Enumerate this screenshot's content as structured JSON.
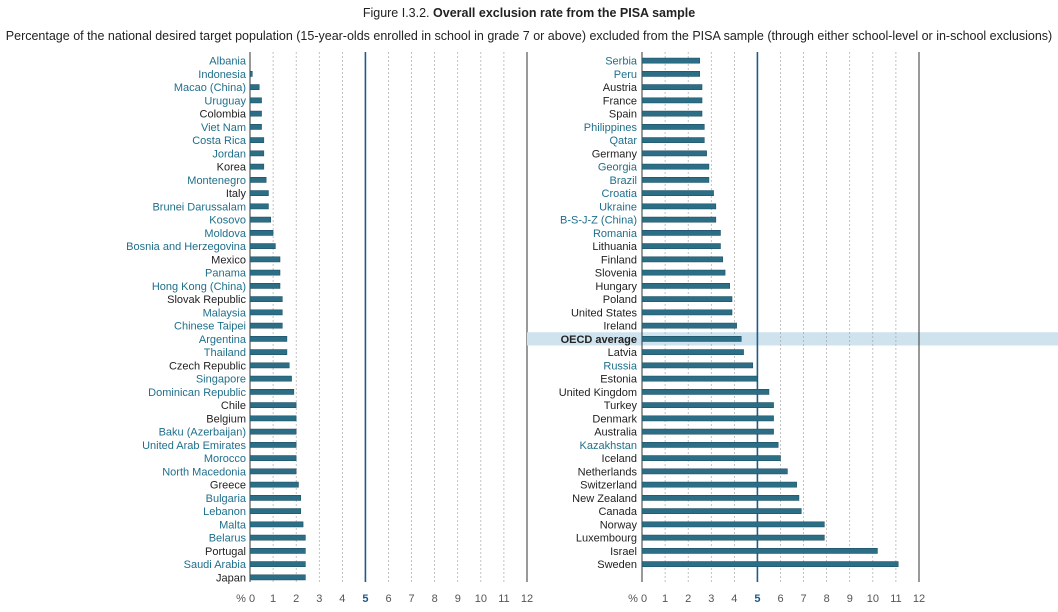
{
  "figure_number": "Figure I.3.2.",
  "chart_data": {
    "type": "bar",
    "orientation": "horizontal",
    "title": "Overall exclusion rate from the PISA sample",
    "subtitle": "Percentage of the national desired target population (15-year-olds enrolled in school in grade 7 or above) excluded from the PISA sample (through either school-level or in-school exclusions)",
    "axis_unit_label": "%",
    "xlim": [
      0,
      12
    ],
    "ticks": [
      0,
      1,
      2,
      3,
      4,
      5,
      6,
      7,
      8,
      9,
      10,
      11,
      12
    ],
    "reference_line": 5,
    "colors": {
      "bar": "#2b6e85",
      "partner_label": "#1f6f8b",
      "oecd_label": "#222222",
      "highlight": "#cfe3ee",
      "refline": "#1f5a8a"
    },
    "panels": [
      {
        "series": [
          {
            "name": "Albania",
            "value": 0.0,
            "partner": true
          },
          {
            "name": "Indonesia",
            "value": 0.1,
            "partner": true
          },
          {
            "name": "Macao (China)",
            "value": 0.4,
            "partner": true
          },
          {
            "name": "Uruguay",
            "value": 0.5,
            "partner": true
          },
          {
            "name": "Colombia",
            "value": 0.5,
            "partner": false
          },
          {
            "name": "Viet Nam",
            "value": 0.5,
            "partner": true
          },
          {
            "name": "Costa Rica",
            "value": 0.6,
            "partner": true
          },
          {
            "name": "Jordan",
            "value": 0.6,
            "partner": true
          },
          {
            "name": "Korea",
            "value": 0.6,
            "partner": false
          },
          {
            "name": "Montenegro",
            "value": 0.7,
            "partner": true
          },
          {
            "name": "Italy",
            "value": 0.8,
            "partner": false
          },
          {
            "name": "Brunei Darussalam",
            "value": 0.8,
            "partner": true
          },
          {
            "name": "Kosovo",
            "value": 0.9,
            "partner": true
          },
          {
            "name": "Moldova",
            "value": 1.0,
            "partner": true
          },
          {
            "name": "Bosnia and Herzegovina",
            "value": 1.1,
            "partner": true
          },
          {
            "name": "Mexico",
            "value": 1.3,
            "partner": false
          },
          {
            "name": "Panama",
            "value": 1.3,
            "partner": true
          },
          {
            "name": "Hong Kong (China)",
            "value": 1.3,
            "partner": true
          },
          {
            "name": "Slovak Republic",
            "value": 1.4,
            "partner": false
          },
          {
            "name": "Malaysia",
            "value": 1.4,
            "partner": true
          },
          {
            "name": "Chinese Taipei",
            "value": 1.4,
            "partner": true
          },
          {
            "name": "Argentina",
            "value": 1.6,
            "partner": true
          },
          {
            "name": "Thailand",
            "value": 1.6,
            "partner": true
          },
          {
            "name": "Czech Republic",
            "value": 1.7,
            "partner": false
          },
          {
            "name": "Singapore",
            "value": 1.8,
            "partner": true
          },
          {
            "name": "Dominican Republic",
            "value": 1.9,
            "partner": true
          },
          {
            "name": "Chile",
            "value": 2.0,
            "partner": false
          },
          {
            "name": "Belgium",
            "value": 2.0,
            "partner": false
          },
          {
            "name": "Baku (Azerbaijan)",
            "value": 2.0,
            "partner": true
          },
          {
            "name": "United Arab Emirates",
            "value": 2.0,
            "partner": true
          },
          {
            "name": "Morocco",
            "value": 2.0,
            "partner": true
          },
          {
            "name": "North Macedonia",
            "value": 2.0,
            "partner": true
          },
          {
            "name": "Greece",
            "value": 2.1,
            "partner": false
          },
          {
            "name": "Bulgaria",
            "value": 2.2,
            "partner": true
          },
          {
            "name": "Lebanon",
            "value": 2.2,
            "partner": true
          },
          {
            "name": "Malta",
            "value": 2.3,
            "partner": true
          },
          {
            "name": "Belarus",
            "value": 2.4,
            "partner": true
          },
          {
            "name": "Portugal",
            "value": 2.4,
            "partner": false
          },
          {
            "name": "Saudi Arabia",
            "value": 2.4,
            "partner": true
          },
          {
            "name": "Japan",
            "value": 2.4,
            "partner": false
          }
        ]
      },
      {
        "series": [
          {
            "name": "Serbia",
            "value": 2.5,
            "partner": true
          },
          {
            "name": "Peru",
            "value": 2.5,
            "partner": true
          },
          {
            "name": "Austria",
            "value": 2.6,
            "partner": false
          },
          {
            "name": "France",
            "value": 2.6,
            "partner": false
          },
          {
            "name": "Spain",
            "value": 2.6,
            "partner": false
          },
          {
            "name": "Philippines",
            "value": 2.7,
            "partner": true
          },
          {
            "name": "Qatar",
            "value": 2.7,
            "partner": true
          },
          {
            "name": "Germany",
            "value": 2.8,
            "partner": false
          },
          {
            "name": "Georgia",
            "value": 2.9,
            "partner": true
          },
          {
            "name": "Brazil",
            "value": 2.9,
            "partner": true
          },
          {
            "name": "Croatia",
            "value": 3.1,
            "partner": true
          },
          {
            "name": "Ukraine",
            "value": 3.2,
            "partner": true
          },
          {
            "name": "B-S-J-Z (China)",
            "value": 3.2,
            "partner": true
          },
          {
            "name": "Romania",
            "value": 3.4,
            "partner": true
          },
          {
            "name": "Lithuania",
            "value": 3.4,
            "partner": false
          },
          {
            "name": "Finland",
            "value": 3.5,
            "partner": false
          },
          {
            "name": "Slovenia",
            "value": 3.6,
            "partner": false
          },
          {
            "name": "Hungary",
            "value": 3.8,
            "partner": false
          },
          {
            "name": "Poland",
            "value": 3.9,
            "partner": false
          },
          {
            "name": "United States",
            "value": 3.9,
            "partner": false
          },
          {
            "name": "Ireland",
            "value": 4.1,
            "partner": false
          },
          {
            "name": "OECD average",
            "value": 4.3,
            "partner": false,
            "highlight": true
          },
          {
            "name": "Latvia",
            "value": 4.4,
            "partner": false
          },
          {
            "name": "Russia",
            "value": 4.8,
            "partner": true
          },
          {
            "name": "Estonia",
            "value": 5.0,
            "partner": false
          },
          {
            "name": "United Kingdom",
            "value": 5.5,
            "partner": false
          },
          {
            "name": "Turkey",
            "value": 5.7,
            "partner": false
          },
          {
            "name": "Denmark",
            "value": 5.7,
            "partner": false
          },
          {
            "name": "Australia",
            "value": 5.7,
            "partner": false
          },
          {
            "name": "Kazakhstan",
            "value": 5.9,
            "partner": true
          },
          {
            "name": "Iceland",
            "value": 6.0,
            "partner": false
          },
          {
            "name": "Netherlands",
            "value": 6.3,
            "partner": false
          },
          {
            "name": "Switzerland",
            "value": 6.7,
            "partner": false
          },
          {
            "name": "New Zealand",
            "value": 6.8,
            "partner": false
          },
          {
            "name": "Canada",
            "value": 6.9,
            "partner": false
          },
          {
            "name": "Norway",
            "value": 7.9,
            "partner": false
          },
          {
            "name": "Luxembourg",
            "value": 7.9,
            "partner": false
          },
          {
            "name": "Israel",
            "value": 10.2,
            "partner": false
          },
          {
            "name": "Sweden",
            "value": 11.1,
            "partner": false
          }
        ]
      }
    ]
  }
}
